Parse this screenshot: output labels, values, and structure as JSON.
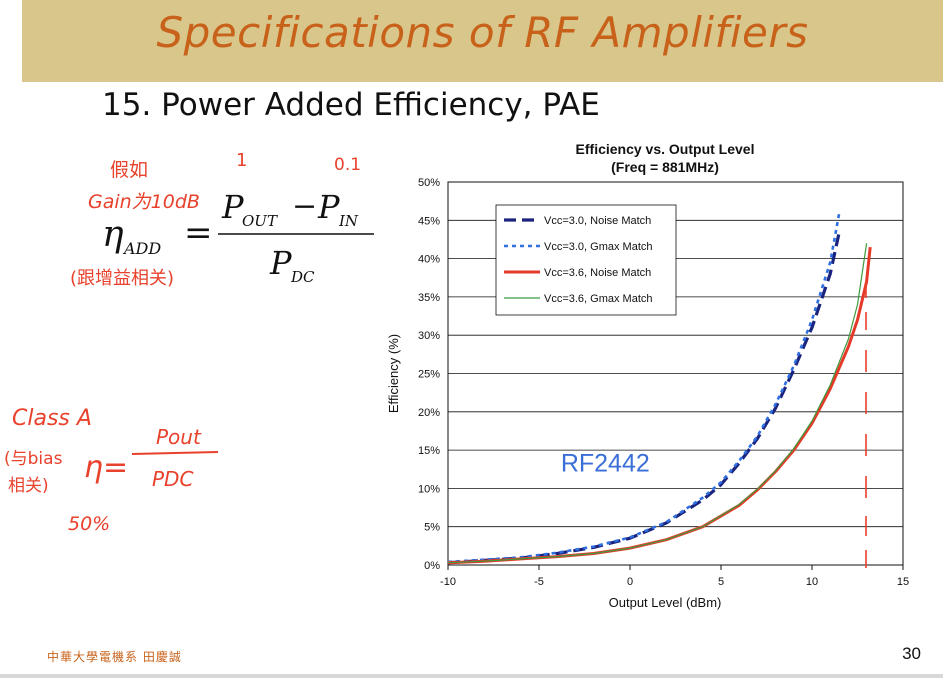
{
  "slide": {
    "title": "Specifications of RF Amplifiers",
    "subtitle": "15. Power Added Efficiency, PAE",
    "footer": "中華大學電機系 田慶誠",
    "page_number": "30"
  },
  "formula": {
    "symbol": "η",
    "symbol_sub": "ADD",
    "equals": "=",
    "num_a": "P",
    "num_a_sub": "OUT",
    "minus": "−",
    "num_b": "P",
    "num_b_sub": "IN",
    "den": "P",
    "den_sub": "DC"
  },
  "annotations": {
    "note_top_1": "假如",
    "note_top_2": "Gain为10dB",
    "note_top_3": "(跟增益相关)",
    "num_over_pout": "1",
    "num_over_pin": "0.1",
    "class_a": "Class A",
    "bias_note_1": "(与bias",
    "bias_note_2": "相关)",
    "eta": "η=",
    "pout": "Pout",
    "pdc": "PDC",
    "fifty": "50%"
  },
  "chart_data": {
    "type": "line",
    "title": "Efficiency vs. Output Level",
    "subtitle": "(Freq = 881MHz)",
    "xlabel": "Output Level (dBm)",
    "ylabel": "Efficiency (%)",
    "xlim": [
      -10,
      15
    ],
    "ylim": [
      0,
      50
    ],
    "x_ticks": [
      "-10",
      "-5",
      "0",
      "5",
      "10",
      "15"
    ],
    "y_ticks": [
      "0%",
      "5%",
      "10%",
      "15%",
      "20%",
      "25%",
      "30%",
      "35%",
      "40%",
      "45%",
      "50%"
    ],
    "grid": true,
    "legend_position": "top-left",
    "annotation": "RF2442",
    "series": [
      {
        "name": "Vcc=3.0, Noise Match",
        "color": "#1a237e",
        "dash": "long-dash",
        "x": [
          -10,
          -8,
          -6,
          -4,
          -2,
          0,
          2,
          4,
          5,
          6,
          7,
          8,
          9,
          10,
          11,
          11.5
        ],
        "y": [
          0.3,
          0.6,
          0.9,
          1.5,
          2.3,
          3.5,
          5.5,
          8.5,
          10.5,
          13.3,
          16.5,
          20.5,
          25.5,
          31.0,
          38.0,
          43.5
        ]
      },
      {
        "name": "Vcc=3.0, Gmax Match",
        "color": "#2f6fe0",
        "dash": "short-dash",
        "x": [
          -10,
          -8,
          -6,
          -4,
          -2,
          0,
          2,
          4,
          5,
          6,
          7,
          8,
          9,
          10,
          11,
          11.5
        ],
        "y": [
          0.4,
          0.7,
          1.0,
          1.6,
          2.4,
          3.6,
          5.6,
          8.8,
          10.8,
          13.6,
          16.8,
          21.0,
          26.0,
          32.0,
          39.5,
          46.0
        ]
      },
      {
        "name": "Vcc=3.6, Noise Match",
        "color": "#e53a2a",
        "dash": "solid",
        "x": [
          -10,
          -8,
          -6,
          -4,
          -2,
          0,
          2,
          4,
          6,
          7,
          8,
          9,
          10,
          11,
          12,
          12.5,
          13,
          13.2
        ],
        "y": [
          0.3,
          0.5,
          0.8,
          1.1,
          1.5,
          2.2,
          3.3,
          5.0,
          7.8,
          9.8,
          12.2,
          15.0,
          18.5,
          23.0,
          28.5,
          32.0,
          37.0,
          41.5
        ]
      },
      {
        "name": "Vcc=3.6, Gmax Match",
        "color": "#3c9a3c",
        "dash": "thin",
        "x": [
          -10,
          -8,
          -6,
          -4,
          -2,
          0,
          2,
          4,
          6,
          7,
          8,
          9,
          10,
          11,
          12,
          12.5,
          13
        ],
        "y": [
          0.3,
          0.5,
          0.8,
          1.1,
          1.5,
          2.2,
          3.3,
          5.0,
          7.9,
          9.9,
          12.3,
          15.2,
          18.8,
          23.5,
          29.5,
          34.0,
          42.0
        ]
      }
    ]
  }
}
